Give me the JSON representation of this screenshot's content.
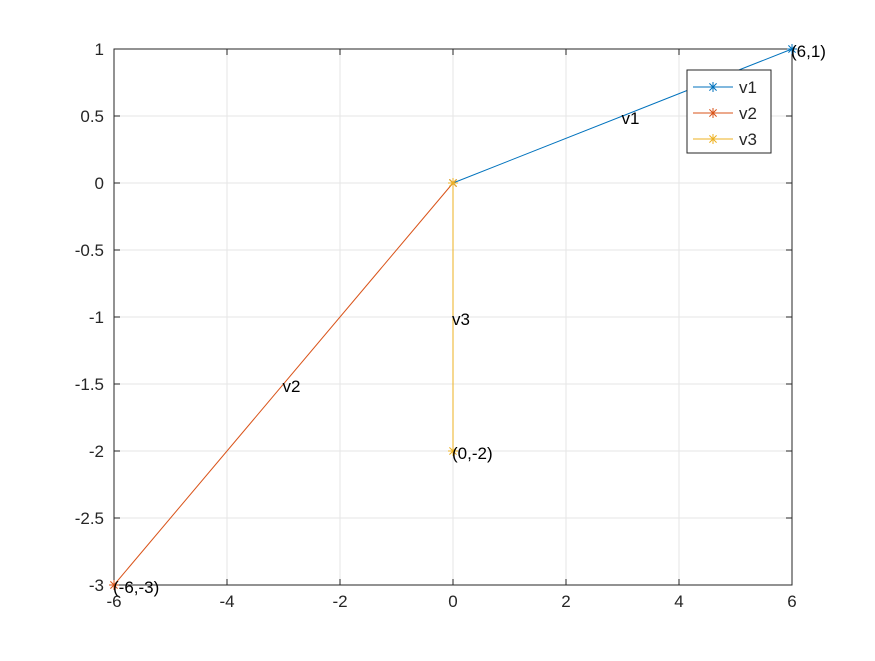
{
  "chart_data": {
    "type": "line",
    "title": "",
    "xlabel": "",
    "ylabel": "",
    "xlim": [
      -6,
      6
    ],
    "ylim": [
      -3,
      1
    ],
    "xticks": [
      -6,
      -4,
      -2,
      0,
      2,
      4,
      6
    ],
    "yticks": [
      -3,
      -2.5,
      -2,
      -1.5,
      -1,
      -0.5,
      0,
      0.5,
      1
    ],
    "grid": true,
    "legend_placement": "top-right",
    "series": [
      {
        "name": "v1",
        "color": "#0072BD",
        "x": [
          0,
          6
        ],
        "y": [
          0,
          1
        ],
        "marker": "asterisk"
      },
      {
        "name": "v2",
        "color": "#D95319",
        "x": [
          0,
          -6
        ],
        "y": [
          0,
          -3
        ],
        "marker": "asterisk"
      },
      {
        "name": "v3",
        "color": "#EDB120",
        "x": [
          0,
          0
        ],
        "y": [
          0,
          -2
        ],
        "marker": "asterisk"
      }
    ],
    "annotations": [
      {
        "text": "v1",
        "x": 3,
        "y": 0.5
      },
      {
        "text": "v2",
        "x": -3,
        "y": -1.5
      },
      {
        "text": "v3",
        "x": 0,
        "y": -1
      },
      {
        "text": "(6,1)",
        "x": 6,
        "y": 1
      },
      {
        "text": "(-6,-3)",
        "x": -6,
        "y": -3
      },
      {
        "text": "(0,-2)",
        "x": 0,
        "y": -2
      }
    ]
  }
}
